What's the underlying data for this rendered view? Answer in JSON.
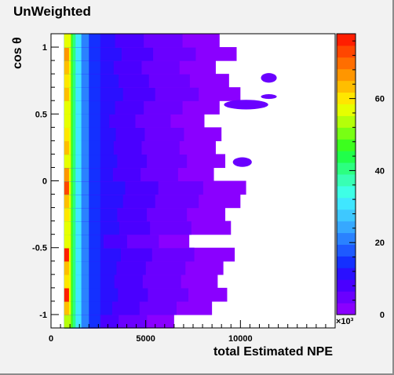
{
  "chart_data": {
    "type": "heatmap",
    "title": "UnWeighted",
    "xlabel": "total Estimated NPE",
    "ylabel": "cos θ",
    "xlim": [
      0,
      15000
    ],
    "ylim": [
      -1.1,
      1.1
    ],
    "x_ticks": [
      0,
      5000,
      10000
    ],
    "y_ticks": [
      -1,
      -0.5,
      0,
      0.5,
      1
    ],
    "colorbar": {
      "range": [
        0,
        78000
      ],
      "ticks": [
        0,
        20000,
        40000,
        60000
      ],
      "multiplier": "×10³",
      "colors": [
        "#8a00ff",
        "#6a00ff",
        "#4a00ff",
        "#2a10ff",
        "#1430ff",
        "#1e5aff",
        "#2a82ff",
        "#36a8ff",
        "#3ec8ff",
        "#40e6ff",
        "#3effe6",
        "#38ffb4",
        "#2cff80",
        "#20ff4a",
        "#3cff1e",
        "#78ff14",
        "#b4ff0a",
        "#e6ff00",
        "#ffe600",
        "#ffbe00",
        "#ff9600",
        "#ff6e00",
        "#ff4600",
        "#ff1e00"
      ]
    },
    "grid": false,
    "description_values": {
      "x_extent_main": [
        700,
        9800
      ],
      "cos_theta_rows": [
        -1.05,
        -0.95,
        -0.85,
        -0.75,
        -0.65,
        -0.55,
        -0.45,
        -0.35,
        -0.25,
        -0.15,
        -0.05,
        0.05,
        0.15,
        0.25,
        0.35,
        0.45,
        0.55,
        0.65,
        0.75,
        0.85,
        0.95,
        1.05
      ],
      "row_extent_npe": [
        6500,
        8500,
        9300,
        8800,
        9100,
        9700,
        7300,
        9500,
        9200,
        10000,
        10300,
        8600,
        9200,
        8700,
        9000,
        8100,
        8900,
        10000,
        9400,
        8700,
        9800,
        8900
      ],
      "peak_npe": 800,
      "peak_value_rows": [
        52000,
        64000,
        78000,
        60000,
        62000,
        76000,
        58000,
        56000,
        60000,
        64000,
        72000,
        66000,
        58000,
        62000,
        60000,
        56000,
        58000,
        62000,
        60000,
        64000,
        66000,
        58000
      ]
    }
  }
}
